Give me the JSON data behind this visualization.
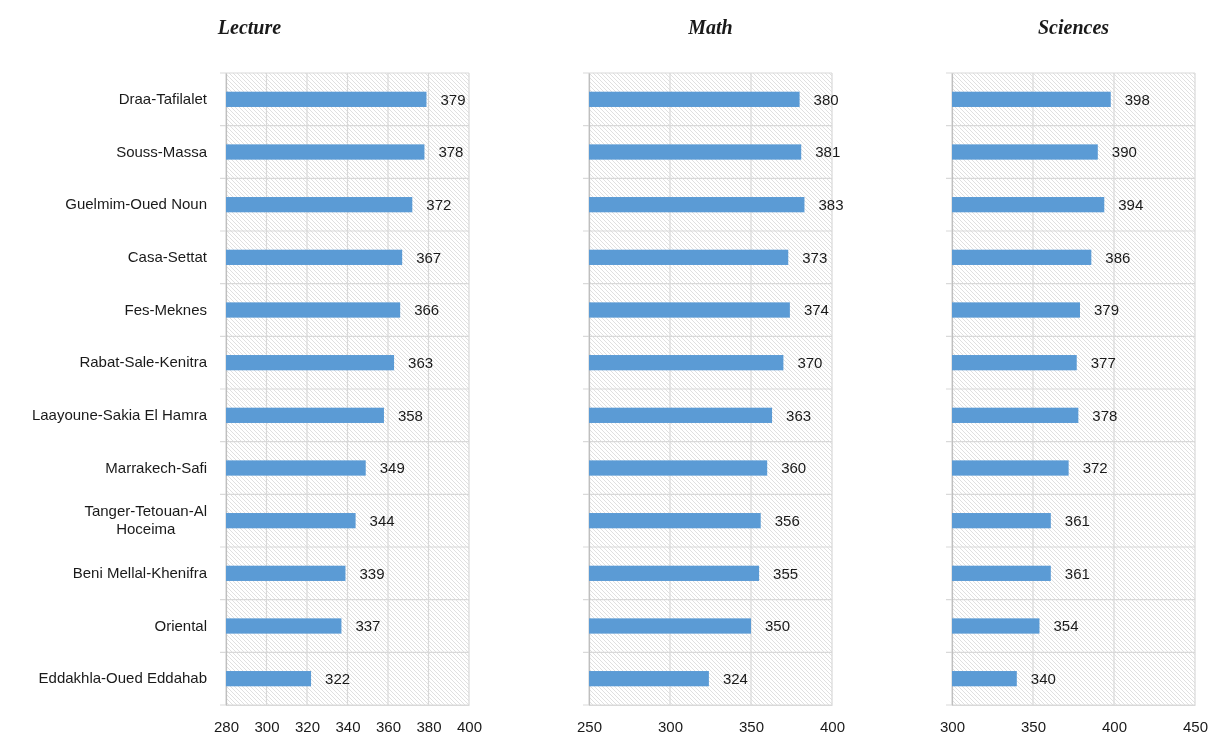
{
  "chart_data": [
    {
      "type": "bar",
      "orientation": "horizontal",
      "title": "Lecture",
      "categories": [
        "Draa-Tafilalet",
        "Souss-Massa",
        "Guelmim-Oued Noun",
        "Casa-Settat",
        "Fes-Meknes",
        "Rabat-Sale-Kenitra",
        "Laayoune-Sakia El Hamra",
        "Marrakech-Safi",
        "Tanger-Tetouan-Al Hoceima",
        "Beni Mellal-Khenifra",
        "Oriental",
        "Eddakhla-Oued Eddahab"
      ],
      "values": [
        379,
        378,
        372,
        367,
        366,
        363,
        358,
        349,
        344,
        339,
        337,
        322
      ],
      "color": "#5b9bd5",
      "xlim": [
        280,
        400
      ],
      "xticks": [
        280,
        300,
        320,
        340,
        360,
        380,
        400
      ],
      "grid": true,
      "data_labels": true
    },
    {
      "type": "bar",
      "orientation": "horizontal",
      "title": "Math",
      "categories": [
        null,
        null,
        null,
        null,
        null,
        null,
        null,
        null,
        null,
        null,
        null,
        null
      ],
      "values": [
        380,
        381,
        383,
        373,
        374,
        370,
        363,
        360,
        356,
        355,
        350,
        324
      ],
      "color": "#5b9bd5",
      "xlim": [
        250,
        400
      ],
      "xticks": [
        250,
        300,
        350,
        400
      ],
      "grid": true,
      "data_labels": true
    },
    {
      "type": "bar",
      "orientation": "horizontal",
      "title": "Sciences",
      "categories": [
        null,
        null,
        null,
        null,
        null,
        null,
        null,
        null,
        null,
        null,
        null,
        null
      ],
      "values": [
        398,
        390,
        394,
        386,
        379,
        377,
        378,
        372,
        361,
        361,
        354,
        340
      ],
      "color": "#5b9bd5",
      "xlim": [
        300,
        450
      ],
      "xticks": [
        300,
        350,
        400,
        450
      ],
      "grid": true,
      "data_labels": true
    }
  ]
}
